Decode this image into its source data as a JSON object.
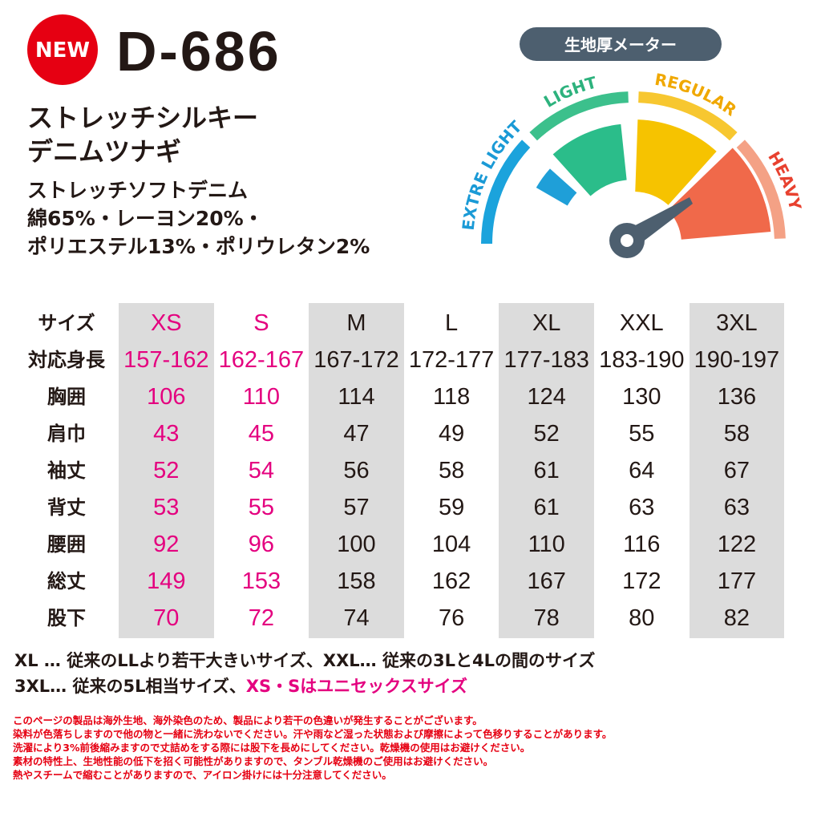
{
  "header": {
    "badge": "NEW",
    "model": "D-686",
    "name_lines": [
      "ストレッチシルキー",
      "デニムツナギ"
    ],
    "material_lines": [
      "ストレッチソフトデニム",
      "綿65%・レーヨン20%・",
      "ポリエステル13%・ポリウレタン2%"
    ]
  },
  "meter": {
    "title": "生地厚メーター",
    "labels": [
      "EXTRE LIGHT",
      "LIGHT",
      "REGULAR",
      "HEAVY"
    ]
  },
  "table": {
    "rows": [
      [
        "サイズ",
        "XS",
        "S",
        "M",
        "L",
        "XL",
        "XXL",
        "3XL"
      ],
      [
        "対応身長",
        "157-162",
        "162-167",
        "167-172",
        "172-177",
        "177-183",
        "183-190",
        "190-197"
      ],
      [
        "胸囲",
        106,
        110,
        114,
        118,
        124,
        130,
        136
      ],
      [
        "肩巾",
        43,
        45,
        47,
        49,
        52,
        55,
        58
      ],
      [
        "袖丈",
        52,
        54,
        56,
        58,
        61,
        64,
        67
      ],
      [
        "背丈",
        53,
        55,
        57,
        59,
        61,
        63,
        63
      ],
      [
        "腰囲",
        92,
        96,
        100,
        104,
        110,
        116,
        122
      ],
      [
        "総丈",
        149,
        153,
        158,
        162,
        167,
        172,
        177
      ],
      [
        "股下",
        70,
        72,
        74,
        76,
        78,
        80,
        82
      ]
    ]
  },
  "notes": {
    "size_line_1": "XL … 従来のLLより若干大きいサイズ、XXL… 従来の3Lと4Lの間のサイズ",
    "size_line_2": [
      "3XL… 従来の5L相当サイズ、",
      "XS・Sはユニセックスサイズ"
    ],
    "caution_lines": [
      "このページの製品は海外生地、海外染色のため、製品により若干の色違いが発生することがございます。",
      "染料が色落ちしますので他の物と一緒に洗わないでください。汗や雨など湿った状態および摩擦によって色移りすることがあります。",
      "洗濯により3%前後縮みますので丈詰めをする際には股下を長めにしてください。乾燥機の使用はお避けください。",
      "素材の特性上、生地性能の低下を招く可能性がありますので、タンブル乾燥機のご使用はお避けください。",
      "熱やスチームで縮むことがありますので、アイロン掛けには十分注意してください。"
    ]
  }
}
